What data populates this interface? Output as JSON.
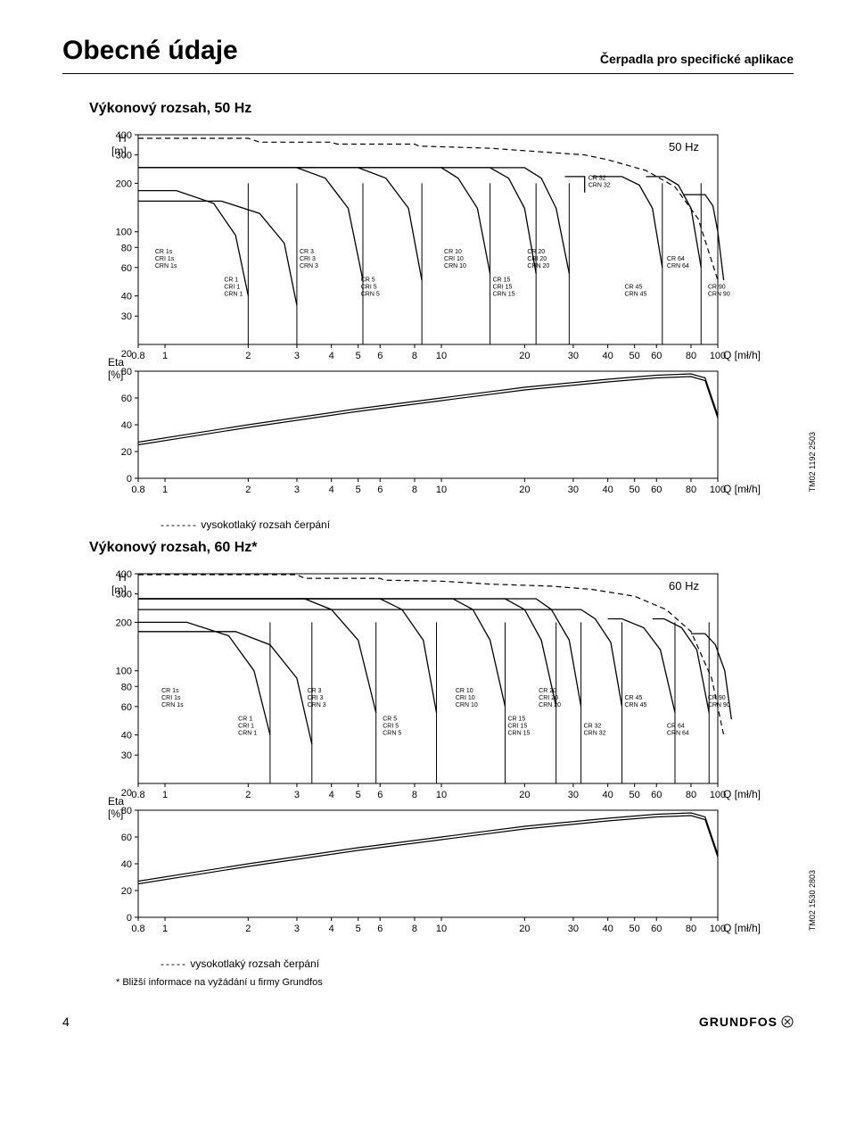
{
  "header": {
    "title": "Obecné údaje",
    "subtitle": "Čerpadla pro specifické aplikace"
  },
  "section50_title": "Výkonový rozsah, 50 Hz",
  "section60_title": "Výkonový rozsah, 60 Hz*",
  "legend50": "vysokotlaký rozsah čerpání",
  "legend60": "vysokotlaký rozsah čerpání",
  "legend50_dash": "-------",
  "legend60_dash": "-----",
  "note": "*  Bližší informace na vyžádání u firmy Grundfos",
  "footer": {
    "page": "4",
    "logo": "GRUNDFOS"
  },
  "tm50": "TM02 1192 2503",
  "tm60": "TM02 1530 2803",
  "colors": {
    "line": "#000000",
    "grid": "#000000",
    "dash": "#000000",
    "bg": "#ffffff"
  },
  "chart50": {
    "freq_label": "50 Hz",
    "y_unit_top": "H",
    "y_unit_top2": "[m]",
    "y_ticks_top": [
      "400",
      "300",
      "200",
      "100",
      "80",
      "60",
      "40",
      "30"
    ],
    "y_ticks_bot_label1": "Eta",
    "y_ticks_bot_label2": "[%]",
    "y_ticks_bot": [
      "80",
      "60",
      "40",
      "20",
      "0",
      "20"
    ],
    "x_ticks": [
      "0.8",
      "1",
      "2",
      "3",
      "4",
      "5",
      "6",
      "8",
      "10",
      "20",
      "30",
      "40",
      "50",
      "60",
      "80",
      "100"
    ],
    "x_label": "Q [mł/h]",
    "upper_label": "CR 32\nCRN 32",
    "groups_top": [
      {
        "x": 0.9,
        "lines": [
          "CR 1s",
          "CRI 1s",
          "CRN 1s"
        ]
      },
      {
        "x": 1.6,
        "lines": [
          "CR 1",
          "CRI 1",
          "CRN 1"
        ]
      },
      {
        "x": 3.0,
        "lines": [
          "CR 3",
          "CRI 3",
          "CRN 3"
        ]
      },
      {
        "x": 5.0,
        "lines": [
          "CR 5",
          "CRI 5",
          "CRN 5"
        ]
      },
      {
        "x": 10.0,
        "lines": [
          "CR 10",
          "CRI 10",
          "CRN 10"
        ]
      },
      {
        "x": 15.0,
        "lines": [
          "CR 15",
          "CRI 15",
          "CRN 15"
        ]
      },
      {
        "x": 20.0,
        "lines": [
          "CR 20",
          "CRI 20",
          "CRN 20"
        ]
      },
      {
        "x": 45.0,
        "lines": [
          "CR 45",
          "CRN 45"
        ]
      },
      {
        "x": 64.0,
        "lines": [
          "CR 64",
          "CRN 64"
        ]
      },
      {
        "x": 90.0,
        "lines": [
          "CR 90",
          "CRN 90"
        ]
      }
    ],
    "groups_top_ylow": [
      60,
      40,
      60,
      40,
      60,
      40,
      60,
      40,
      60,
      40
    ],
    "h_xlim": [
      0.8,
      100
    ],
    "h_ylim": [
      20,
      400
    ],
    "eta_ylim": [
      0,
      80
    ],
    "env_dashed": [
      [
        0.8,
        380
      ],
      [
        2,
        380
      ],
      [
        2.2,
        360
      ],
      [
        4,
        360
      ],
      [
        4.2,
        350
      ],
      [
        8,
        350
      ],
      [
        8.3,
        340
      ],
      [
        15,
        330
      ],
      [
        25,
        310
      ],
      [
        33,
        300
      ],
      [
        40,
        280
      ],
      [
        55,
        240
      ],
      [
        70,
        190
      ],
      [
        85,
        120
      ],
      [
        100,
        50
      ]
    ],
    "series_h": [
      {
        "pts": [
          [
            0.8,
            180
          ],
          [
            1.1,
            180
          ],
          [
            1.5,
            150
          ],
          [
            1.8,
            95
          ],
          [
            2.0,
            40
          ]
        ]
      },
      {
        "pts": [
          [
            0.8,
            155
          ],
          [
            1.6,
            155
          ],
          [
            2.2,
            130
          ],
          [
            2.7,
            85
          ],
          [
            3.0,
            35
          ]
        ]
      },
      {
        "pts": [
          [
            0.8,
            250
          ],
          [
            3.0,
            250
          ],
          [
            3.8,
            215
          ],
          [
            4.6,
            140
          ],
          [
            5.2,
            50
          ]
        ]
      },
      {
        "pts": [
          [
            0.8,
            250
          ],
          [
            5.0,
            250
          ],
          [
            6.3,
            215
          ],
          [
            7.6,
            140
          ],
          [
            8.5,
            50
          ]
        ]
      },
      {
        "pts": [
          [
            0.8,
            250
          ],
          [
            10,
            250
          ],
          [
            11.5,
            215
          ],
          [
            13.5,
            140
          ],
          [
            15,
            55
          ]
        ]
      },
      {
        "pts": [
          [
            0.8,
            250
          ],
          [
            15,
            250
          ],
          [
            17.5,
            215
          ],
          [
            20,
            140
          ],
          [
            22,
            55
          ]
        ]
      },
      {
        "pts": [
          [
            0.8,
            250
          ],
          [
            20,
            250
          ],
          [
            23,
            215
          ],
          [
            26,
            140
          ],
          [
            29,
            55
          ]
        ]
      },
      {
        "pts": [
          [
            28,
            220
          ],
          [
            33,
            220
          ],
          [
            33,
            175
          ]
        ],
        "step": true
      },
      {
        "pts": [
          [
            35,
            220
          ],
          [
            45,
            220
          ],
          [
            52,
            195
          ],
          [
            58,
            140
          ],
          [
            63,
            60
          ]
        ]
      },
      {
        "pts": [
          [
            55,
            220
          ],
          [
            64,
            220
          ],
          [
            72,
            195
          ],
          [
            80,
            140
          ],
          [
            87,
            60
          ]
        ]
      },
      {
        "pts": [
          [
            75,
            170
          ],
          [
            90,
            170
          ],
          [
            96,
            145
          ],
          [
            100,
            100
          ],
          [
            105,
            50
          ]
        ]
      }
    ],
    "series_vdrop": [
      2.0,
      3.0,
      5.2,
      8.5,
      15,
      22,
      29,
      63,
      87,
      105
    ],
    "eta_curve": [
      [
        0.8,
        25
      ],
      [
        2,
        38
      ],
      [
        5,
        50
      ],
      [
        10,
        58
      ],
      [
        20,
        66
      ],
      [
        40,
        72
      ],
      [
        60,
        75
      ],
      [
        80,
        76
      ],
      [
        90,
        73
      ],
      [
        100,
        45
      ]
    ]
  },
  "chart60": {
    "freq_label": "60 Hz",
    "y_unit_top": "H",
    "y_unit_top2": "[m]",
    "y_ticks_top": [
      "400",
      "300",
      "200",
      "100",
      "80",
      "60",
      "40",
      "30"
    ],
    "y_ticks_bot_label1": "Eta",
    "y_ticks_bot_label2": "[%]",
    "y_ticks_bot": [
      "80",
      "60",
      "40",
      "20",
      "0",
      "20"
    ],
    "x_ticks": [
      "0.8",
      "1",
      "2",
      "3",
      "4",
      "5",
      "6",
      "8",
      "10",
      "20",
      "30",
      "40",
      "50",
      "60",
      "80",
      "100"
    ],
    "x_label": "Q [mł/h]",
    "groups_top": [
      {
        "x": 0.95,
        "lines": [
          "CR 1s",
          "CRI 1s",
          "CRN 1s"
        ]
      },
      {
        "x": 1.8,
        "lines": [
          "CR 1",
          "CRI 1",
          "CRN 1"
        ]
      },
      {
        "x": 3.2,
        "lines": [
          "CR 3",
          "CRI 3",
          "CRN 3"
        ]
      },
      {
        "x": 6.0,
        "lines": [
          "CR 5",
          "CRI 5",
          "CRN 5"
        ]
      },
      {
        "x": 11.0,
        "lines": [
          "CR 10",
          "CRI 10",
          "CRN 10"
        ]
      },
      {
        "x": 17.0,
        "lines": [
          "CR 15",
          "CRI 15",
          "CRN 15"
        ]
      },
      {
        "x": 22.0,
        "lines": [
          "CR 20",
          "CRI 20",
          "CRN 20"
        ]
      },
      {
        "x": 32.0,
        "lines": [
          "CR 32",
          "CRN 32"
        ]
      },
      {
        "x": 45.0,
        "lines": [
          "CR 45",
          "CRN 45"
        ]
      },
      {
        "x": 64.0,
        "lines": [
          "CR 64",
          "CRN 64"
        ]
      },
      {
        "x": 90.0,
        "lines": [
          "CR 90",
          "CRN 90"
        ]
      }
    ],
    "groups_top_ylow": [
      60,
      40,
      60,
      40,
      60,
      40,
      60,
      40,
      60,
      40,
      60
    ],
    "h_xlim": [
      0.8,
      100
    ],
    "h_ylim": [
      20,
      400
    ],
    "eta_ylim": [
      0,
      80
    ],
    "env_dashed": [
      [
        0.8,
        395
      ],
      [
        3,
        395
      ],
      [
        3.2,
        375
      ],
      [
        6,
        375
      ],
      [
        6.2,
        365
      ],
      [
        10,
        360
      ],
      [
        15,
        345
      ],
      [
        25,
        335
      ],
      [
        35,
        320
      ],
      [
        50,
        290
      ],
      [
        65,
        240
      ],
      [
        80,
        175
      ],
      [
        95,
        90
      ],
      [
        105,
        40
      ]
    ],
    "series_h": [
      {
        "pts": [
          [
            0.8,
            200
          ],
          [
            1.2,
            200
          ],
          [
            1.7,
            165
          ],
          [
            2.1,
            100
          ],
          [
            2.4,
            40
          ]
        ]
      },
      {
        "pts": [
          [
            0.8,
            175
          ],
          [
            1.8,
            175
          ],
          [
            2.4,
            145
          ],
          [
            3.0,
            90
          ],
          [
            3.4,
            35
          ]
        ]
      },
      {
        "pts": [
          [
            0.8,
            280
          ],
          [
            3.2,
            280
          ],
          [
            4.0,
            240
          ],
          [
            5.0,
            155
          ],
          [
            5.8,
            55
          ]
        ]
      },
      {
        "pts": [
          [
            0.8,
            280
          ],
          [
            6.0,
            280
          ],
          [
            7.2,
            240
          ],
          [
            8.6,
            155
          ],
          [
            9.6,
            55
          ]
        ]
      },
      {
        "pts": [
          [
            0.8,
            280
          ],
          [
            11,
            280
          ],
          [
            13,
            240
          ],
          [
            15,
            155
          ],
          [
            17,
            60
          ]
        ]
      },
      {
        "pts": [
          [
            0.8,
            280
          ],
          [
            17,
            280
          ],
          [
            20,
            240
          ],
          [
            23,
            155
          ],
          [
            26,
            60
          ]
        ]
      },
      {
        "pts": [
          [
            0.8,
            280
          ],
          [
            22,
            280
          ],
          [
            25,
            240
          ],
          [
            29,
            155
          ],
          [
            32,
            60
          ]
        ]
      },
      {
        "pts": [
          [
            0.8,
            240
          ],
          [
            32,
            240
          ],
          [
            36,
            210
          ],
          [
            41,
            150
          ],
          [
            45,
            60
          ]
        ]
      },
      {
        "pts": [
          [
            40,
            210
          ],
          [
            45,
            210
          ],
          [
            54,
            185
          ],
          [
            62,
            135
          ],
          [
            70,
            55
          ]
        ]
      },
      {
        "pts": [
          [
            58,
            210
          ],
          [
            64,
            210
          ],
          [
            74,
            185
          ],
          [
            84,
            135
          ],
          [
            93,
            55
          ]
        ]
      },
      {
        "pts": [
          [
            80,
            170
          ],
          [
            90,
            170
          ],
          [
            98,
            145
          ],
          [
            106,
            100
          ],
          [
            112,
            50
          ]
        ]
      }
    ],
    "series_vdrop": [
      2.4,
      3.4,
      5.8,
      9.6,
      17,
      26,
      32,
      45,
      70,
      93,
      112
    ],
    "eta_curve": [
      [
        0.8,
        25
      ],
      [
        2,
        38
      ],
      [
        5,
        50
      ],
      [
        10,
        58
      ],
      [
        20,
        66
      ],
      [
        40,
        72
      ],
      [
        60,
        75
      ],
      [
        80,
        76
      ],
      [
        90,
        73
      ],
      [
        100,
        45
      ]
    ]
  }
}
